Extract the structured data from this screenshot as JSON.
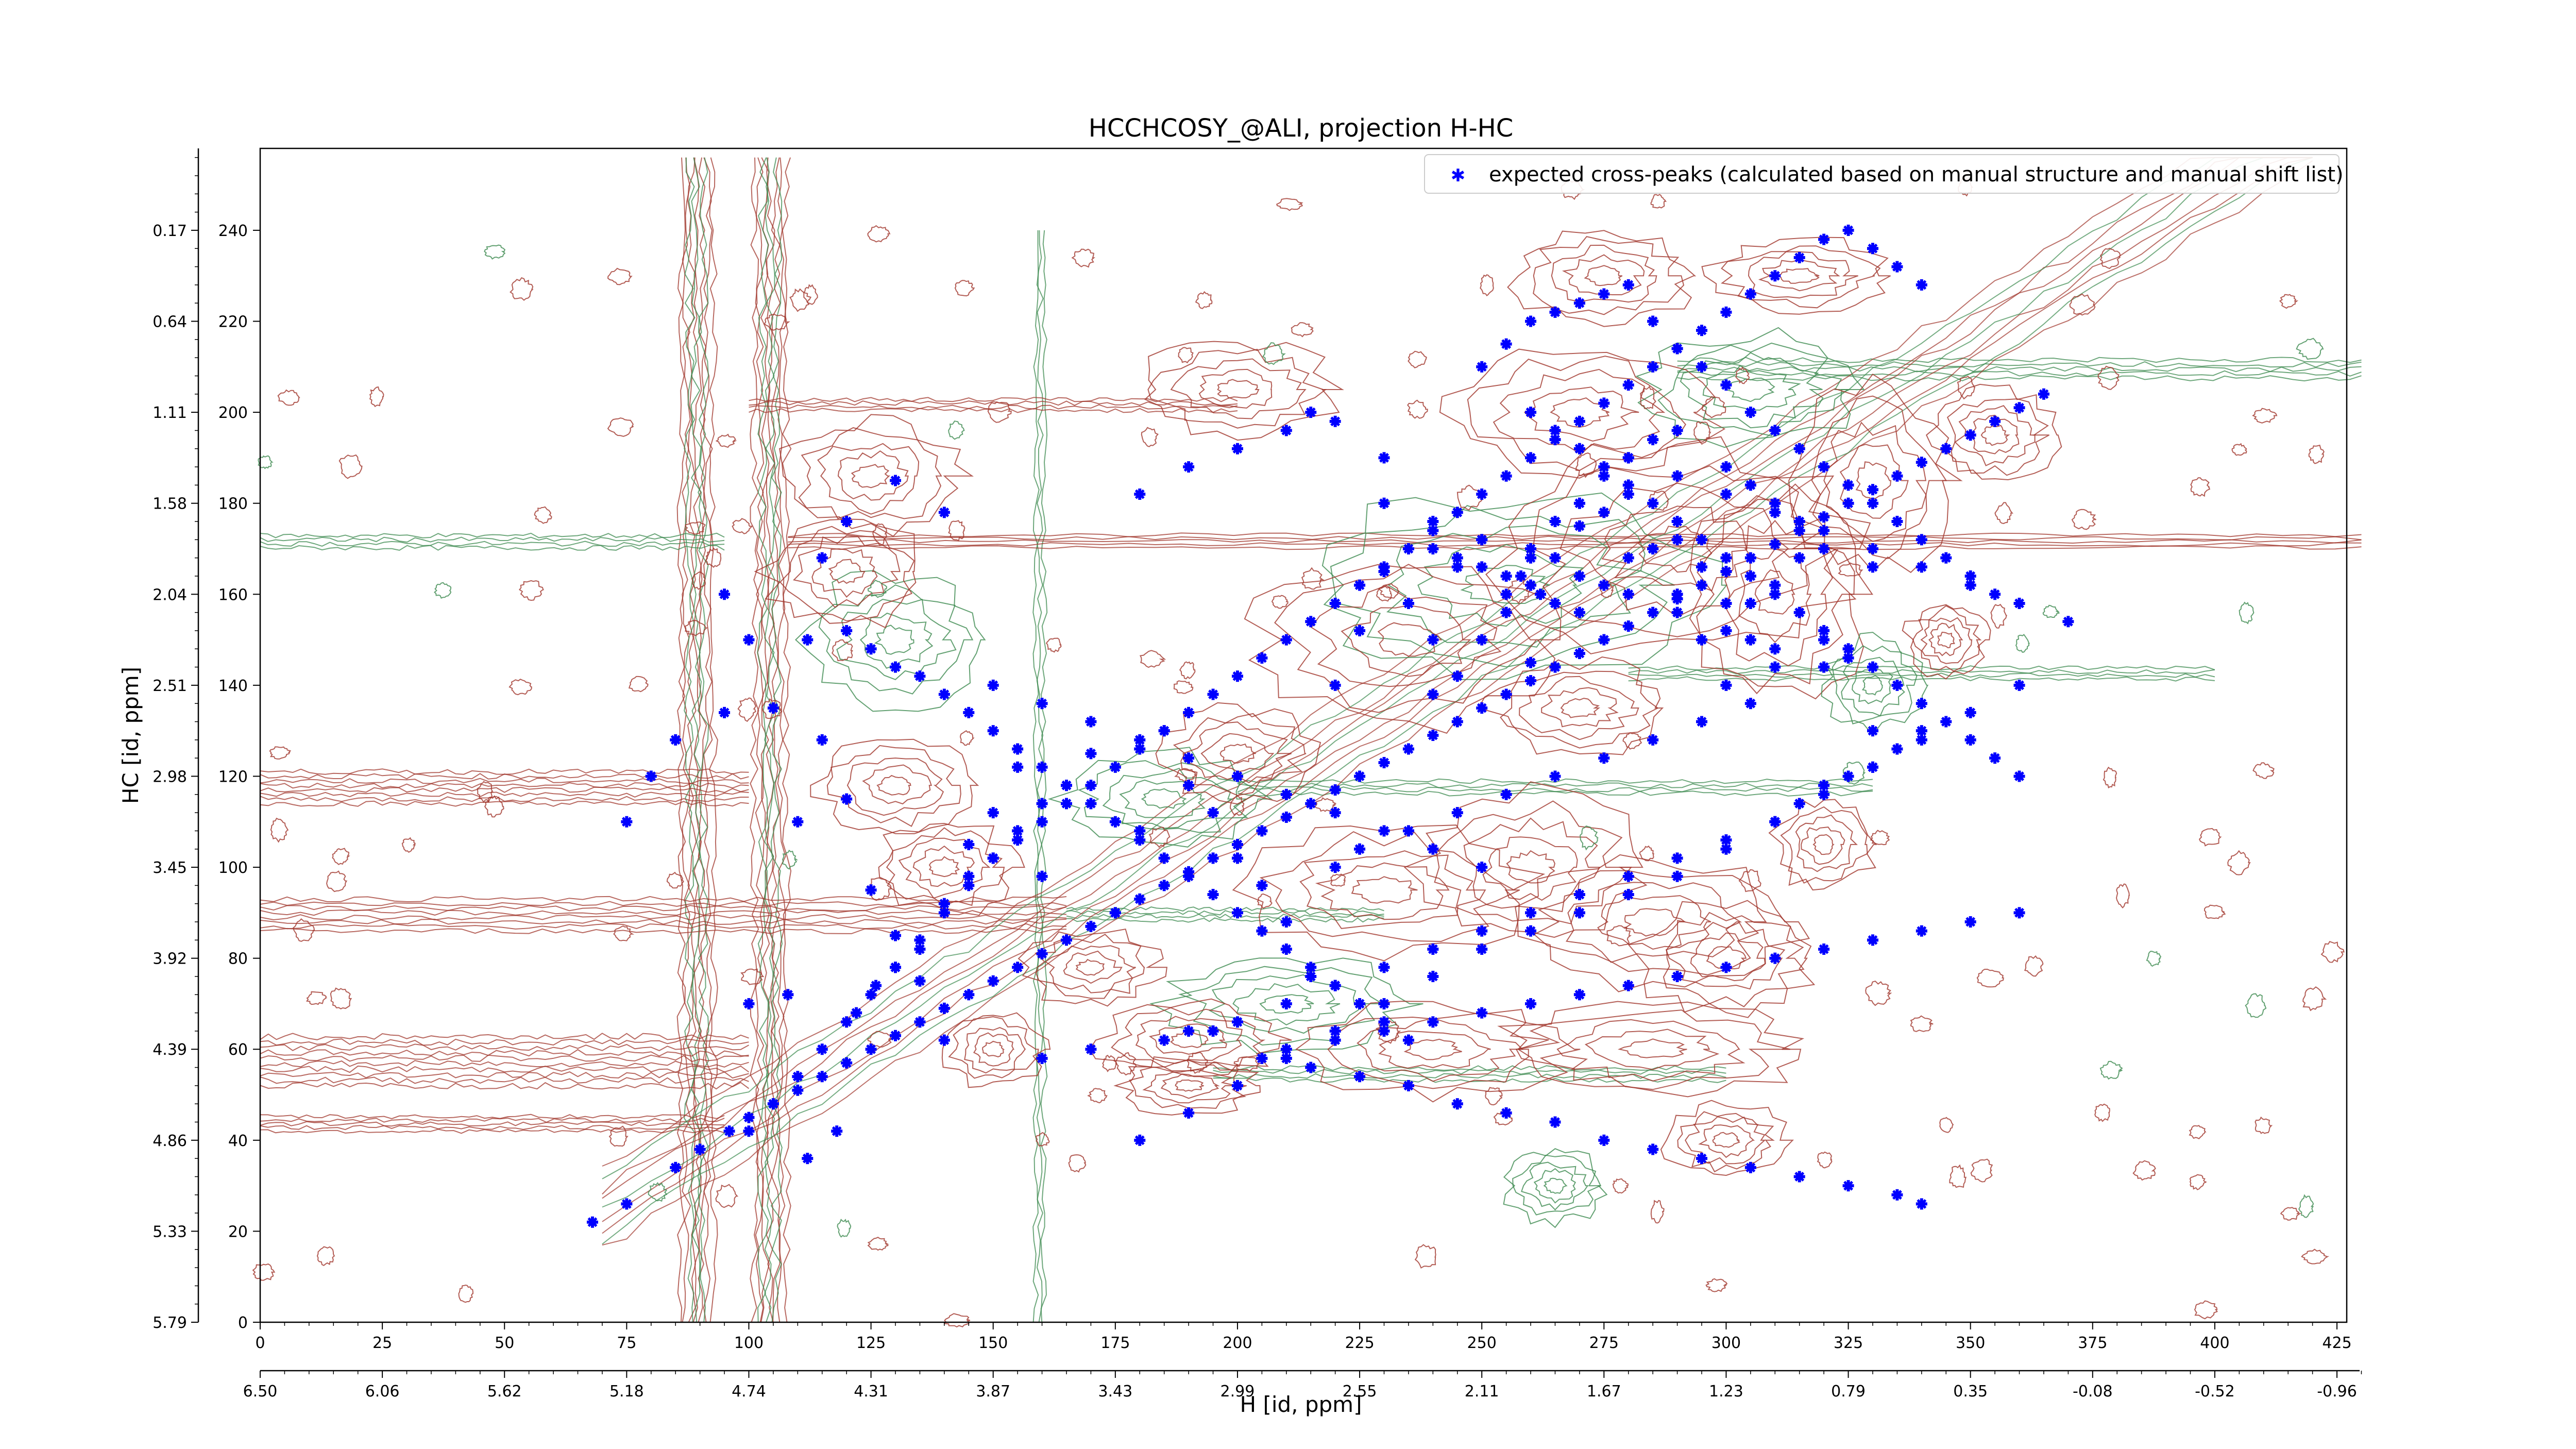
{
  "chart_data": {
    "type": "scatter",
    "title": "HCCHCOSY_@ALI, projection H-HC",
    "xlabel": "H [id, ppm]",
    "ylabel": "HC [id, ppm]",
    "xlim": [
      0,
      427
    ],
    "ylim": [
      0,
      240
    ],
    "x_ticks": [
      "0",
      "25",
      "50",
      "75",
      "100",
      "125",
      "150",
      "175",
      "200",
      "225",
      "250",
      "275",
      "300",
      "325",
      "350",
      "375",
      "400",
      "425"
    ],
    "x_ppm_ticks": [
      "6.50",
      "6.06",
      "5.62",
      "5.18",
      "4.74",
      "4.31",
      "3.87",
      "3.43",
      "2.99",
      "2.55",
      "2.11",
      "1.67",
      "1.23",
      "0.79",
      "0.35",
      "-0.08",
      "-0.52",
      "-0.96"
    ],
    "y_ticks": [
      "0",
      "20",
      "40",
      "60",
      "80",
      "100",
      "120",
      "140",
      "160",
      "180",
      "200",
      "220",
      "240"
    ],
    "y_ppm_ticks": [
      "5.79",
      "5.33",
      "4.86",
      "4.39",
      "3.92",
      "3.45",
      "2.98",
      "2.51",
      "2.04",
      "1.58",
      "1.11",
      "0.64",
      "0.17"
    ],
    "legend": {
      "location": "top-right",
      "entries": [
        "expected cross-peaks (calculated based on manual structure and manual shift list)"
      ]
    },
    "colors": {
      "positive_contour": "#a0352b",
      "negative_contour": "#3c8a4f",
      "peak_marker": "#0000ff"
    },
    "series": [
      {
        "name": "expected cross-peaks (calculated based on manual structure and manual shift list)",
        "x": [
          68,
          75,
          85,
          90,
          96,
          100,
          105,
          110,
          115,
          120,
          125,
          130,
          135,
          140,
          145,
          150,
          155,
          160,
          165,
          170,
          175,
          180,
          185,
          190,
          195,
          200,
          205,
          210,
          215,
          220,
          225,
          230,
          235,
          240,
          245,
          250,
          255,
          260,
          265,
          270,
          275,
          280,
          285,
          290,
          295,
          300,
          305,
          310,
          315,
          320,
          325,
          330,
          335,
          340,
          345,
          350,
          355,
          360,
          365,
          95,
          105,
          110,
          100,
          108,
          112,
          115,
          120,
          125,
          130,
          135,
          140,
          145,
          150,
          155,
          160,
          165,
          170,
          175,
          180,
          185,
          190,
          195,
          200,
          205,
          210,
          215,
          220,
          225,
          230,
          235,
          240,
          245,
          250,
          255,
          260,
          265,
          270,
          275,
          280,
          285,
          290,
          295,
          300,
          305,
          310,
          315,
          320,
          325,
          330,
          112,
          118,
          122,
          126,
          130,
          135,
          140,
          145,
          150,
          155,
          160,
          165,
          170,
          175,
          180,
          185,
          190,
          195,
          200,
          205,
          210,
          215,
          220,
          225,
          230,
          235,
          240,
          245,
          250,
          255,
          260,
          265,
          270,
          275,
          280,
          285,
          290,
          295,
          300,
          305,
          310,
          315,
          320,
          325,
          330,
          335,
          340,
          180,
          190,
          200,
          210,
          215,
          220,
          230,
          240,
          245,
          250,
          255,
          260,
          262,
          265,
          270,
          275,
          280,
          285,
          290,
          295,
          300,
          305,
          310,
          240,
          245,
          250,
          255,
          258,
          260,
          265,
          270,
          275,
          280,
          285,
          290,
          300,
          305,
          310,
          315,
          320,
          330,
          180,
          190,
          200,
          210,
          220,
          230,
          240,
          250,
          260,
          270,
          280,
          290,
          300,
          310,
          320,
          330,
          340,
          350,
          360,
          250,
          255,
          260,
          265,
          270,
          275,
          280,
          285,
          290,
          295,
          300,
          305,
          310,
          315,
          320,
          325,
          330,
          335,
          340,
          345,
          350,
          355,
          190,
          200,
          210,
          220,
          230,
          240,
          250,
          260,
          270,
          280,
          290,
          300,
          310,
          315,
          320,
          325,
          330,
          335,
          340,
          160,
          170,
          185,
          195,
          205,
          215,
          225,
          235,
          245,
          255,
          265,
          275,
          285,
          295,
          305,
          315,
          325,
          335,
          340,
          120,
          125,
          130,
          135,
          140,
          145,
          150,
          155,
          160,
          165,
          170,
          175,
          180,
          185,
          190,
          195,
          200,
          205,
          210,
          215,
          220,
          225,
          230,
          235,
          210,
          220,
          230,
          240,
          250,
          260,
          270,
          280,
          290,
          300,
          310,
          320,
          330,
          340,
          350,
          360,
          100,
          105,
          110,
          115,
          120,
          125,
          130,
          135,
          140,
          145,
          150,
          155,
          160,
          260,
          265,
          270,
          275,
          280,
          285,
          290,
          295,
          300,
          305,
          310,
          315,
          320,
          325,
          330,
          335,
          340,
          345,
          350,
          355,
          360,
          230,
          240,
          250,
          260,
          270,
          280,
          290,
          300,
          310,
          320,
          220,
          225,
          235,
          245,
          255,
          265,
          275,
          285,
          295,
          305,
          150,
          160,
          170,
          180,
          190,
          200,
          210,
          220,
          230,
          240,
          250,
          280,
          290,
          300,
          310,
          320,
          330,
          340,
          350,
          360,
          370,
          75,
          80,
          85,
          95,
          100,
          115,
          120,
          130,
          140
        ],
        "y": [
          22,
          26,
          34,
          38,
          42,
          45,
          48,
          51,
          54,
          57,
          60,
          63,
          66,
          69,
          72,
          75,
          78,
          81,
          84,
          87,
          90,
          93,
          96,
          99,
          102,
          105,
          108,
          111,
          114,
          117,
          120,
          123,
          126,
          129,
          132,
          135,
          138,
          141,
          144,
          147,
          150,
          153,
          156,
          159,
          162,
          165,
          168,
          171,
          174,
          177,
          180,
          183,
          186,
          189,
          192,
          195,
          198,
          201,
          204,
          160,
          135,
          110,
          70,
          72,
          150,
          128,
          115,
          95,
          85,
          75,
          62,
          105,
          112,
          122,
          98,
          118,
          125,
          90,
          108,
          130,
          118,
          112,
          102,
          96,
          88,
          76,
          140,
          152,
          165,
          158,
          150,
          166,
          172,
          160,
          145,
          168,
          175,
          178,
          182,
          170,
          160,
          150,
          140,
          158,
          162,
          168,
          150,
          146,
          130,
          36,
          42,
          68,
          74,
          78,
          82,
          92,
          98,
          102,
          106,
          110,
          114,
          118,
          122,
          126,
          130,
          134,
          138,
          142,
          146,
          150,
          154,
          158,
          162,
          166,
          170,
          174,
          178,
          182,
          186,
          190,
          194,
          198,
          202,
          206,
          210,
          214,
          218,
          222,
          226,
          230,
          234,
          238,
          240,
          236,
          232,
          228,
          182,
          188,
          192,
          196,
          200,
          198,
          190,
          170,
          168,
          166,
          164,
          162,
          160,
          158,
          156,
          162,
          168,
          170,
          172,
          166,
          158,
          150,
          144,
          138,
          142,
          150,
          156,
          164,
          170,
          176,
          180,
          186,
          190,
          194,
          196,
          188,
          184,
          180,
          176,
          170,
          166,
          40,
          46,
          52,
          58,
          64,
          70,
          76,
          82,
          86,
          90,
          94,
          98,
          104,
          110,
          116,
          122,
          128,
          134,
          140,
          210,
          215,
          220,
          222,
          224,
          226,
          228,
          220,
          214,
          210,
          206,
          200,
          196,
          192,
          188,
          184,
          180,
          176,
          172,
          168,
          164,
          160,
          64,
          66,
          70,
          74,
          78,
          82,
          86,
          90,
          94,
          98,
          102,
          106,
          110,
          114,
          118,
          120,
          122,
          126,
          130,
          58,
          60,
          62,
          64,
          58,
          56,
          54,
          52,
          48,
          46,
          44,
          40,
          38,
          36,
          34,
          32,
          30,
          28,
          26,
          152,
          148,
          144,
          142,
          138,
          134,
          130,
          126,
          122,
          118,
          114,
          110,
          106,
          102,
          98,
          94,
          90,
          86,
          82,
          78,
          74,
          70,
          66,
          62,
          60,
          62,
          64,
          66,
          68,
          70,
          72,
          74,
          76,
          78,
          80,
          82,
          84,
          86,
          88,
          90,
          42,
          48,
          54,
          60,
          66,
          72,
          78,
          84,
          90,
          96,
          102,
          108,
          114,
          200,
          196,
          192,
          188,
          184,
          180,
          176,
          172,
          168,
          164,
          160,
          156,
          152,
          148,
          144,
          140,
          136,
          132,
          128,
          124,
          120,
          180,
          176,
          172,
          168,
          164,
          160,
          156,
          152,
          148,
          144,
          100,
          104,
          108,
          112,
          116,
          120,
          124,
          128,
          132,
          136,
          140,
          136,
          132,
          128,
          124,
          120,
          116,
          112,
          108,
          104,
          100,
          190,
          186,
          182,
          178,
          174,
          170,
          166,
          162,
          158,
          154,
          110,
          120,
          128,
          134,
          150,
          168,
          176,
          185,
          178
        ]
      }
    ]
  }
}
